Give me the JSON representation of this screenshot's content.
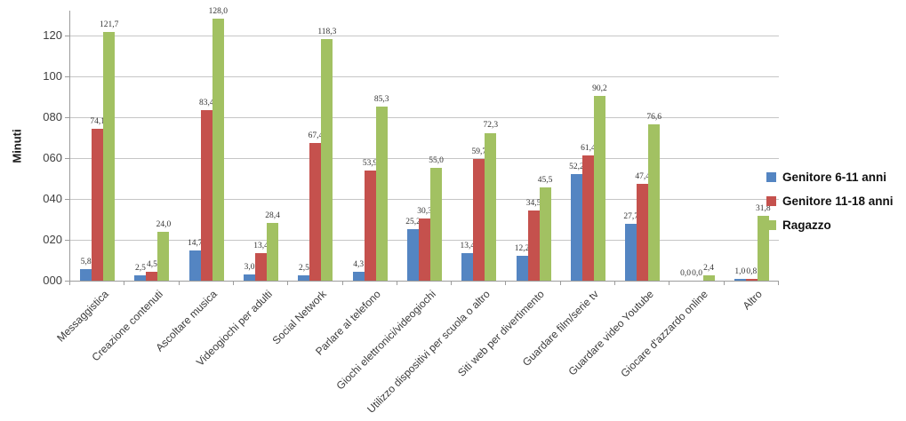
{
  "chart_data": {
    "type": "bar",
    "title": "",
    "xlabel": "",
    "ylabel": "Minuti",
    "ylim": [
      0,
      132
    ],
    "yticks": [
      0,
      20,
      40,
      60,
      80,
      100,
      120
    ],
    "ytick_labels": [
      "000",
      "020",
      "040",
      "060",
      "080",
      "100",
      "120"
    ],
    "grid": true,
    "legend_position": "right",
    "decimal_separator": ",",
    "categories": [
      "Messaggistica",
      "Creazione contenuti",
      "Ascoltare musica",
      "Videogiochi per adulti",
      "Social Network",
      "Parlare al telefono",
      "Giochi elettronici/videogiochi",
      "Utilizzo dispositivi per scuola o altro",
      "Siti web per divertimento",
      "Guardare film/serie tv",
      "Guardare video Youtube",
      "Giocare d'azzardo online",
      "Altro"
    ],
    "series": [
      {
        "name": "Genitore 6-11 anni",
        "color": "#5485C2",
        "values": [
          5.8,
          2.5,
          14.7,
          3.0,
          2.5,
          4.3,
          25.2,
          13.4,
          12.2,
          52.2,
          27.7,
          0.0,
          1.0
        ]
      },
      {
        "name": "Genitore 11-18 anni",
        "color": "#C5514D",
        "values": [
          74.1,
          4.5,
          83.4,
          13.4,
          67.4,
          53.9,
          30.3,
          59.7,
          34.5,
          61.4,
          47.4,
          0.0,
          0.8
        ]
      },
      {
        "name": "Ragazzo",
        "color": "#A2C162",
        "values": [
          121.7,
          24.0,
          128.0,
          28.4,
          118.3,
          85.3,
          55.0,
          72.3,
          45.5,
          90.2,
          76.6,
          2.4,
          31.8
        ]
      }
    ],
    "colors": {
      "axis": "#9C9C9C",
      "gridline": "#C6C6C6",
      "label_text": "#333333"
    }
  }
}
